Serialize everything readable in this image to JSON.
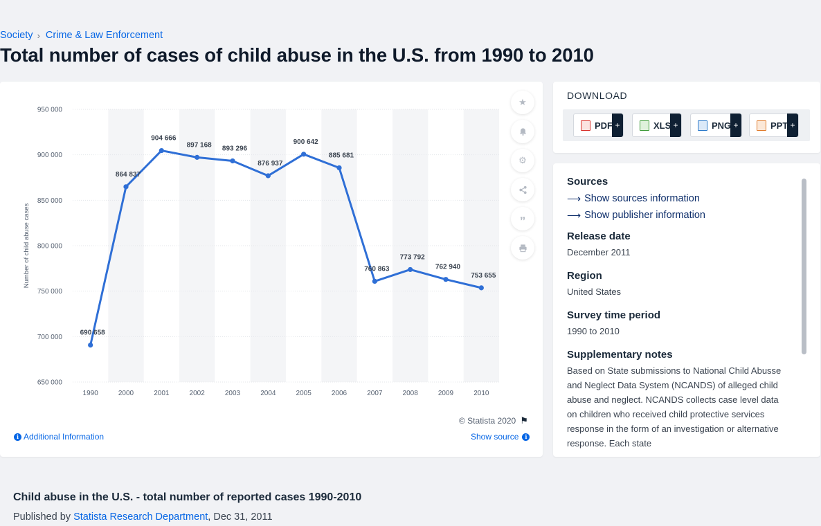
{
  "breadcrumb": {
    "parent": "Society",
    "current": "Crime & Law Enforcement"
  },
  "page_title": "Total number of cases of child abuse in the U.S. from 1990 to 2010",
  "chart_data": {
    "type": "line",
    "title": "",
    "xlabel": "",
    "ylabel": "Number of child abuse cases",
    "categories": [
      "1990",
      "2000",
      "2001",
      "2002",
      "2003",
      "2004",
      "2005",
      "2006",
      "2007",
      "2008",
      "2009",
      "2010"
    ],
    "values": [
      690658,
      864837,
      904666,
      897168,
      893296,
      876937,
      900642,
      885681,
      760863,
      773792,
      762940,
      753655
    ],
    "data_labels": [
      "690 658",
      "864 837",
      "904 666",
      "897 168",
      "893 296",
      "876 937",
      "900 642",
      "885 681",
      "760 863",
      "773 792",
      "762 940",
      "753 655"
    ],
    "ylim": [
      650000,
      950000
    ],
    "yticks": [
      650000,
      700000,
      750000,
      800000,
      850000,
      900000,
      950000
    ],
    "ytick_labels": [
      "650 000",
      "700 000",
      "750 000",
      "800 000",
      "850 000",
      "900 000",
      "950 000"
    ],
    "line_color": "#2f6fd6",
    "grid": true,
    "alternating_column_shading": true
  },
  "chart_footer": {
    "copyright": "© Statista 2020",
    "additional_info": "Additional Information",
    "show_source": "Show source"
  },
  "toolbar_icons": [
    "star-icon",
    "bell-icon",
    "gear-icon",
    "share-icon",
    "quote-icon",
    "print-icon"
  ],
  "download": {
    "title": "DOWNLOAD",
    "formats": [
      {
        "label": "PDF",
        "color": "#d9312b"
      },
      {
        "label": "XLS",
        "color": "#3f9b3a"
      },
      {
        "label": "PNG",
        "color": "#2a78c9"
      },
      {
        "label": "PPT",
        "color": "#e07a2a"
      }
    ],
    "plus": "+"
  },
  "details": {
    "sources_heading": "Sources",
    "show_sources": "Show sources information",
    "show_publisher": "Show publisher information",
    "release_heading": "Release date",
    "release_value": "December 2011",
    "region_heading": "Region",
    "region_value": "United States",
    "survey_heading": "Survey time period",
    "survey_value": "1990 to 2010",
    "notes_heading": "Supplementary notes",
    "notes_value": "Based on State submissions to National Child Abusse and Neglect Data System (NCANDS) of alleged child abuse and neglect. NCANDS collects case level data on children who received child protective services response in the form of an investigation or alternative response. Each state"
  },
  "report": {
    "title": "Child abuse in the U.S. - total number of reported cases 1990-2010",
    "published_prefix": "Published by",
    "publisher": "Statista Research Department",
    "date": ", Dec 31, 2011"
  }
}
